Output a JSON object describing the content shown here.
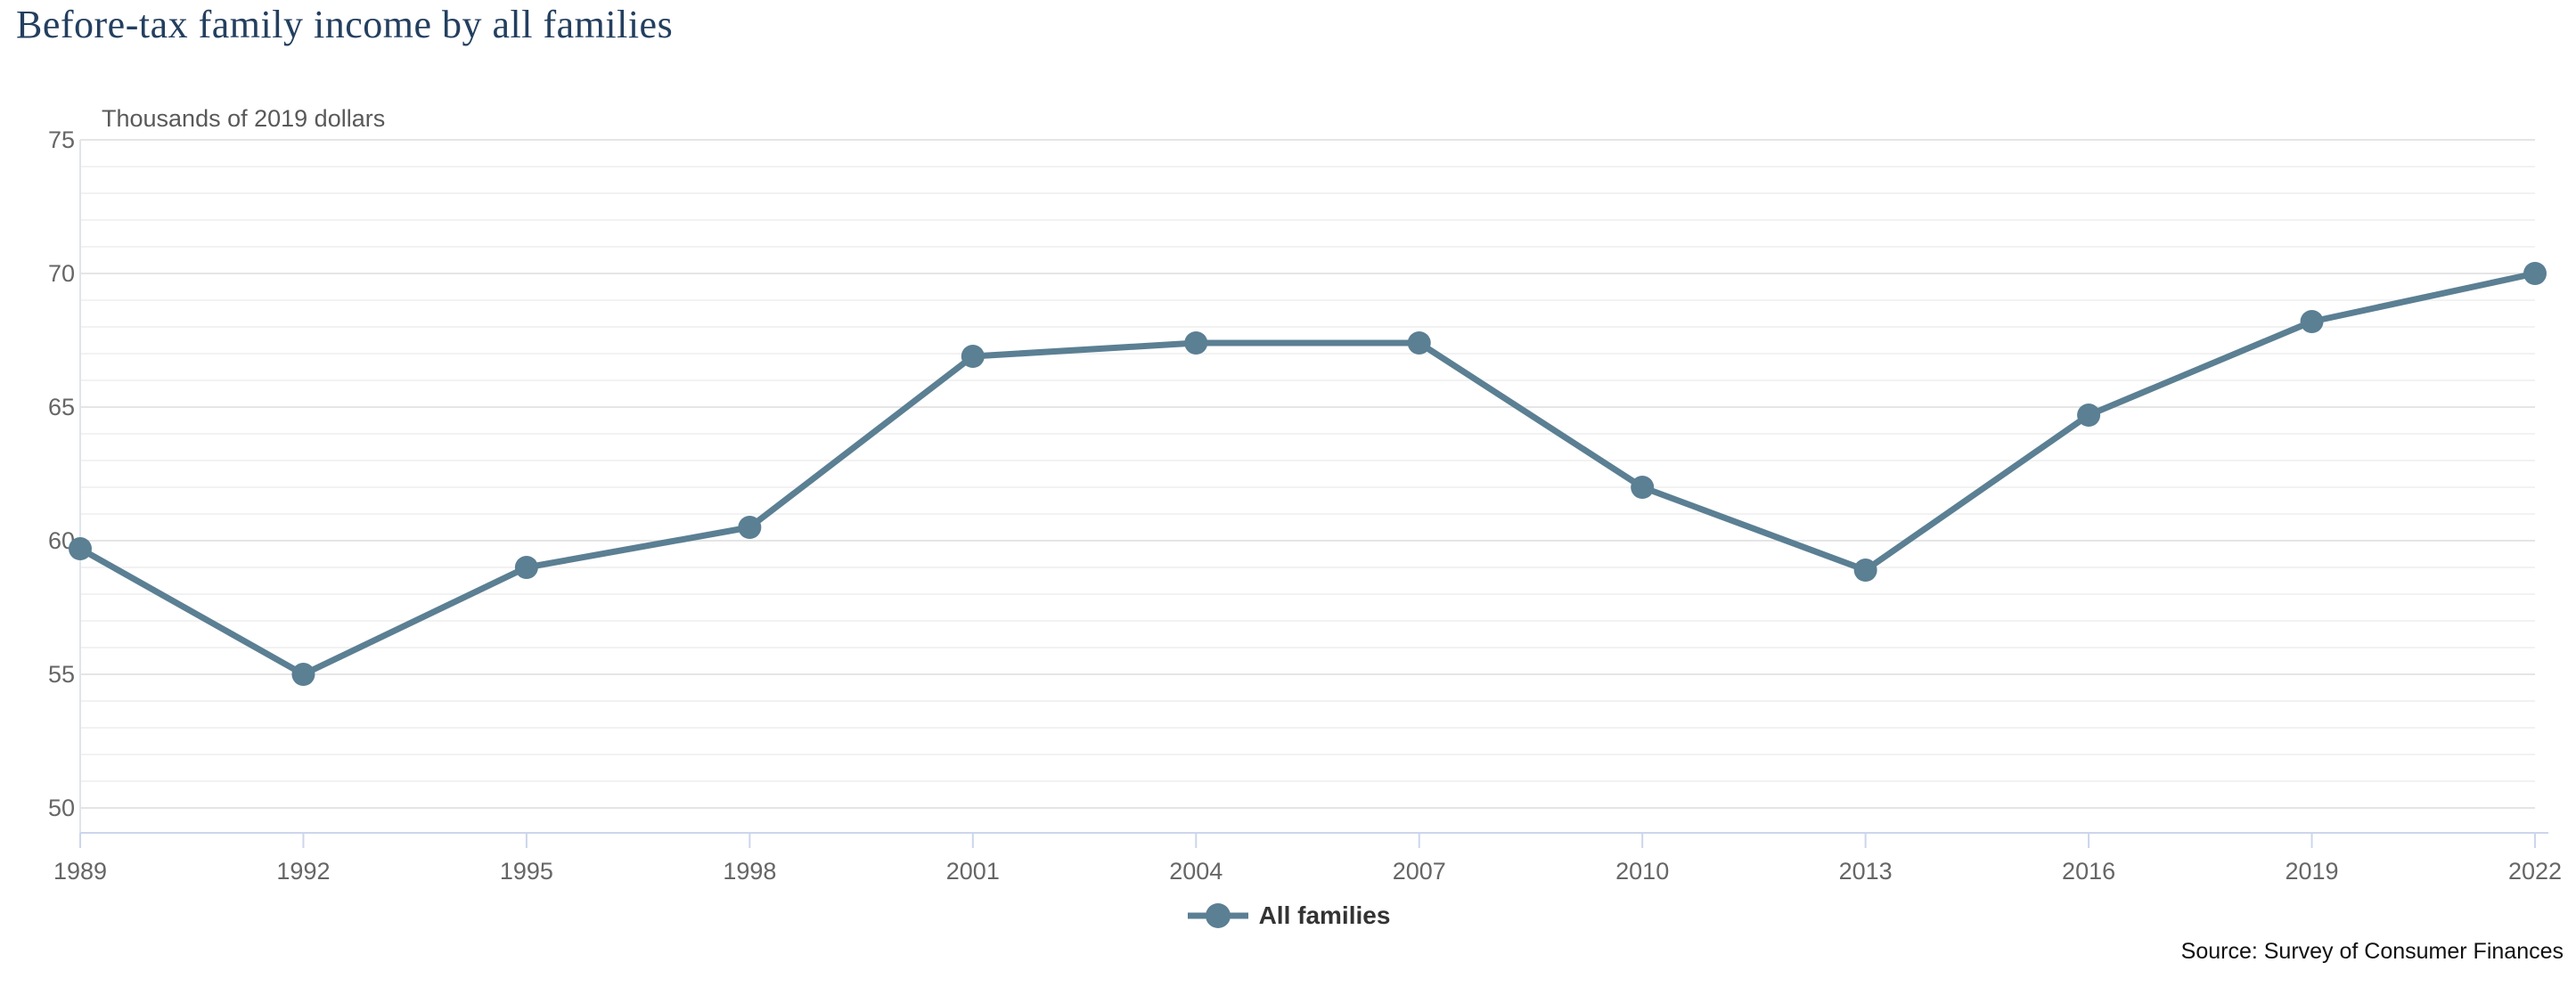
{
  "header": {
    "title": "Before-tax family income by all families"
  },
  "chart": {
    "subtitle": "Thousands of 2019 dollars",
    "legend_label": "All families",
    "source": "Source: Survey of Consumer Finances"
  },
  "colors": {
    "series": "#5b7f93",
    "title": "#233f5f",
    "subtitle": "#595959",
    "axis_labels": "#666666",
    "legend_text": "#333333",
    "minor_grid": "#f2f2f2",
    "major_grid": "#e5e5e5",
    "axis_line": "#ccd6eb",
    "background": "#ffffff"
  },
  "chart_data": {
    "type": "line",
    "title": "Before-tax family income by all families",
    "subtitle": "Thousands of 2019 dollars",
    "categories": [
      "1989",
      "1992",
      "1995",
      "1998",
      "2001",
      "2004",
      "2007",
      "2010",
      "2013",
      "2016",
      "2019",
      "2022"
    ],
    "series": [
      {
        "name": "All families",
        "color": "#5b7f93",
        "values": [
          59.7,
          55.0,
          59.0,
          60.5,
          66.9,
          67.4,
          67.4,
          62.0,
          58.9,
          64.7,
          68.2,
          70.0
        ]
      }
    ],
    "xlabel": "",
    "ylabel": "Thousands of 2019 dollars",
    "ylim": [
      50,
      75
    ],
    "yticks": [
      50,
      55,
      60,
      65,
      70,
      75
    ],
    "minor_grid_step": 1,
    "grid": true,
    "legend_position": "bottom-center",
    "source": "Source: Survey of Consumer Finances"
  }
}
